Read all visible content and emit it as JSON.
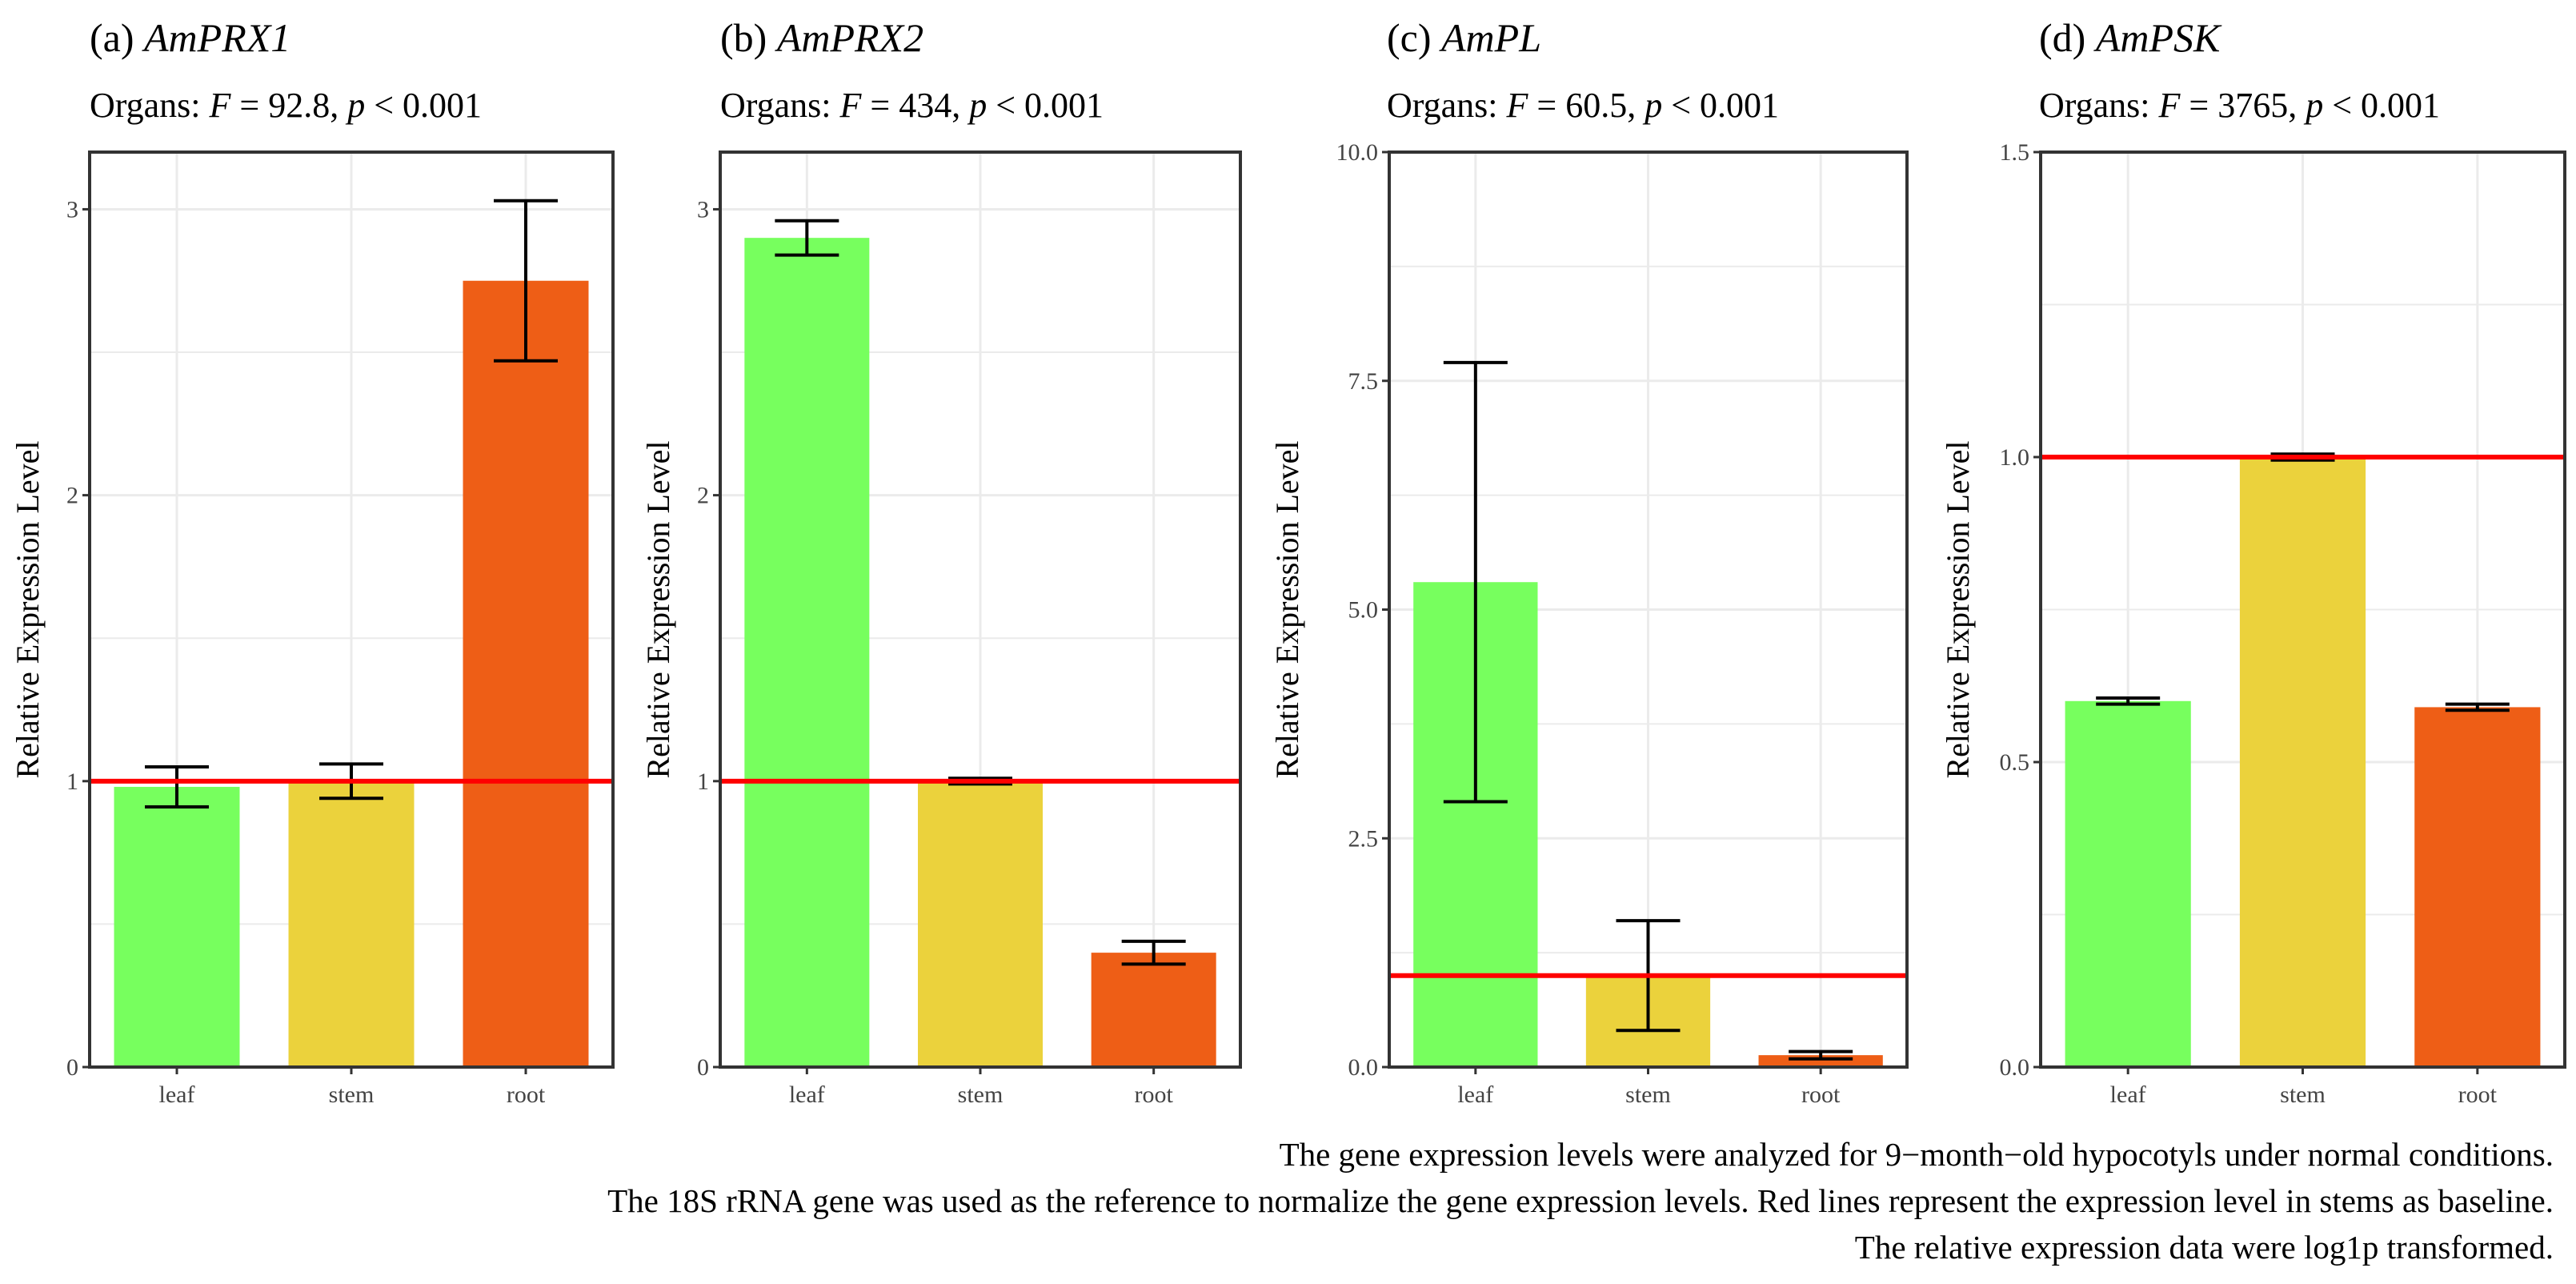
{
  "chart_data": [
    {
      "type": "bar",
      "label": "(a)",
      "gene": "AmPRX1",
      "subtitle": {
        "prefix": "Organs: ",
        "F": "F",
        "eq": " = 92.8, ",
        "p": "p",
        "rest": " < 0.001"
      },
      "ylabel": "Relative Expression Level",
      "categories": [
        "leaf",
        "stem",
        "root"
      ],
      "colors": [
        "#77FF5E",
        "#EBD23C",
        "#EE5E16"
      ],
      "values": [
        0.98,
        1.0,
        2.75
      ],
      "errors": [
        0.07,
        0.06,
        0.28
      ],
      "baseline": 1.0,
      "yticks": [
        0,
        1,
        2,
        3
      ],
      "ytick_labels": [
        "0",
        "1",
        "2",
        "3"
      ],
      "minor_ticks": [
        0.5,
        1.5,
        2.5
      ],
      "ylim": [
        0,
        3.2
      ]
    },
    {
      "type": "bar",
      "label": "(b)",
      "gene": "AmPRX2",
      "subtitle": {
        "prefix": "Organs: ",
        "F": "F",
        "eq": " = 434, ",
        "p": "p",
        "rest": " < 0.001"
      },
      "ylabel": "Relative Expression Level",
      "categories": [
        "leaf",
        "stem",
        "root"
      ],
      "colors": [
        "#77FF5E",
        "#EBD23C",
        "#EE5E16"
      ],
      "values": [
        2.9,
        1.0,
        0.4
      ],
      "errors": [
        0.06,
        0.01,
        0.04
      ],
      "baseline": 1.0,
      "yticks": [
        0,
        1,
        2,
        3
      ],
      "ytick_labels": [
        "0",
        "1",
        "2",
        "3"
      ],
      "minor_ticks": [
        0.5,
        1.5,
        2.5
      ],
      "ylim": [
        0,
        3.2
      ]
    },
    {
      "type": "bar",
      "label": "(c)",
      "gene": "AmPL",
      "subtitle": {
        "prefix": "Organs: ",
        "F": "F",
        "eq": " = 60.5, ",
        "p": "p",
        "rest": " < 0.001"
      },
      "ylabel": "Relative Expression Level",
      "categories": [
        "leaf",
        "stem",
        "root"
      ],
      "colors": [
        "#77FF5E",
        "#EBD23C",
        "#EE5E16"
      ],
      "values": [
        5.3,
        1.0,
        0.13
      ],
      "errors": [
        2.4,
        0.6,
        0.04
      ],
      "baseline": 1.0,
      "yticks": [
        0.0,
        2.5,
        5.0,
        7.5,
        10.0
      ],
      "ytick_labels": [
        "0.0",
        "2.5",
        "5.0",
        "7.5",
        "10.0"
      ],
      "minor_ticks": [
        1.25,
        3.75,
        6.25,
        8.75
      ],
      "ylim": [
        0,
        10
      ]
    },
    {
      "type": "bar",
      "label": "(d)",
      "gene": "AmPSK",
      "subtitle": {
        "prefix": "Organs: ",
        "F": "F",
        "eq": " = 3765, ",
        "p": "p",
        "rest": " < 0.001"
      },
      "ylabel": "Relative Expression Level",
      "categories": [
        "leaf",
        "stem",
        "root"
      ],
      "colors": [
        "#77FF5E",
        "#EBD23C",
        "#EE5E16"
      ],
      "values": [
        0.6,
        1.0,
        0.59
      ],
      "errors": [
        0.005,
        0.005,
        0.005
      ],
      "baseline": 1.0,
      "yticks": [
        0.0,
        0.5,
        1.0,
        1.5
      ],
      "ytick_labels": [
        "0.0",
        "0.5",
        "1.0",
        "1.5"
      ],
      "minor_ticks": [
        0.25,
        0.75,
        1.25
      ],
      "ylim": [
        0,
        1.5
      ]
    }
  ],
  "caption": [
    "The gene expression levels were analyzed for 9−month−old hypocotyls under normal conditions.",
    "The 18S rRNA gene was used as the reference to normalize the gene expression levels. Red lines represent the expression level in stems as baseline.",
    "The relative expression data were log1p transformed."
  ],
  "colors": {
    "baseline": "#FF0000",
    "grid": "#EBEBEB",
    "border": "#333333"
  }
}
